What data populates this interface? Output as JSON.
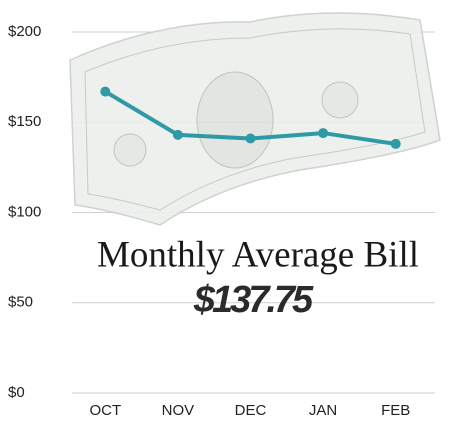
{
  "chart_data": {
    "type": "line",
    "title": "Monthly Average Bill",
    "subtitle": "$137.75",
    "categories": [
      "OCT",
      "NOV",
      "DEC",
      "JAN",
      "FEB"
    ],
    "values": [
      167,
      143,
      141,
      144,
      138
    ],
    "color": "#2f9aa5",
    "ylim": [
      0,
      200
    ],
    "yticks": [
      {
        "value": 0,
        "label": "$0"
      },
      {
        "value": 50,
        "label": "$50"
      },
      {
        "value": 100,
        "label": "$100"
      },
      {
        "value": 150,
        "label": "$150"
      },
      {
        "value": 200,
        "label": "$200"
      }
    ],
    "grid": true
  }
}
